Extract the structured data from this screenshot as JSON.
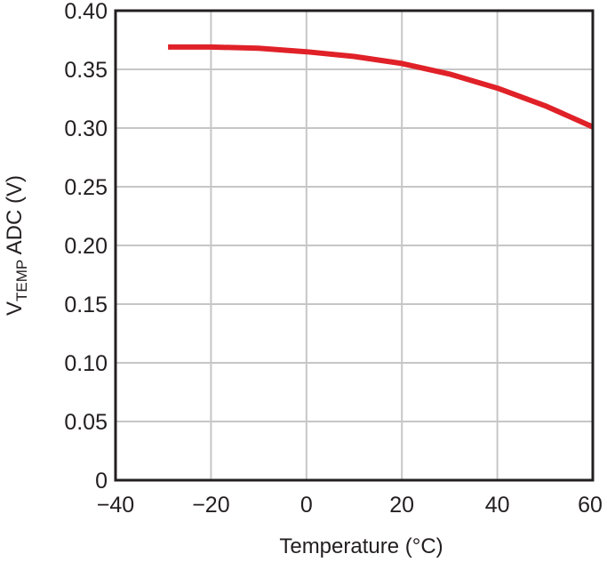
{
  "chart_data": {
    "type": "line",
    "xlabel": "Temperature (°C)",
    "ylabel_main": "V",
    "ylabel_sub": "TEMP",
    "ylabel_rest": " ADC (V)",
    "xlim": [
      -40,
      60
    ],
    "ylim": [
      0,
      0.4
    ],
    "xticks": [
      -40,
      -20,
      0,
      20,
      40,
      60
    ],
    "xtick_labels": [
      "−40",
      "−20",
      "0",
      "20",
      "40",
      "60"
    ],
    "yticks": [
      0,
      0.05,
      0.1,
      0.15,
      0.2,
      0.25,
      0.3,
      0.35,
      0.4
    ],
    "ytick_labels": [
      "0",
      "0.05",
      "0.10",
      "0.15",
      "0.20",
      "0.25",
      "0.30",
      "0.35",
      "0.40"
    ],
    "grid": true,
    "series": [
      {
        "color": "#e02128",
        "x": [
          -29,
          -20,
          -10,
          0,
          10,
          20,
          30,
          40,
          50,
          60
        ],
        "y": [
          0.369,
          0.369,
          0.368,
          0.365,
          0.361,
          0.355,
          0.346,
          0.334,
          0.319,
          0.301
        ]
      }
    ]
  }
}
